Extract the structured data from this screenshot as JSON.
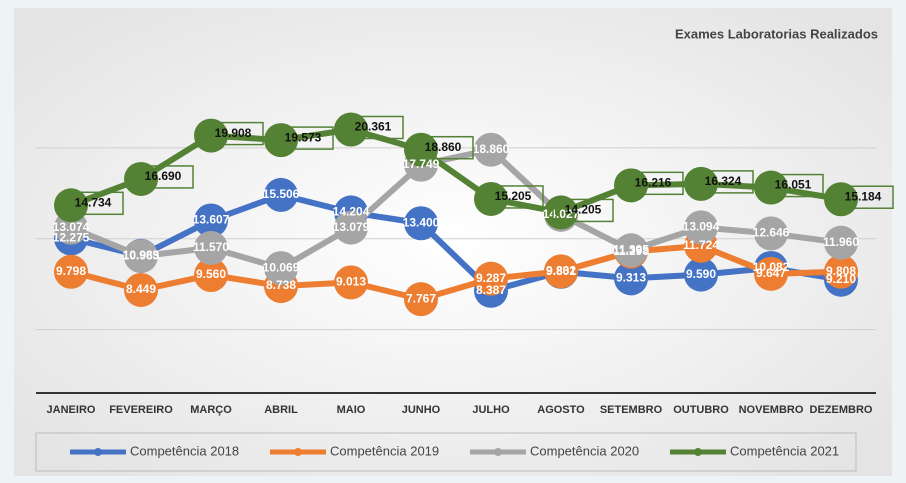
{
  "chart_data": {
    "type": "line",
    "title": "Exames Laboratorias Realizados",
    "categories": [
      "JANEIRO",
      "FEVEREIRO",
      "MARÇO",
      "ABRIL",
      "MAIO",
      "JUNHO",
      "JULHO",
      "AGOSTO",
      "SETEMBRO",
      "OUTUBRO",
      "NOVEMBRO",
      "DEZEMBRO"
    ],
    "series": [
      {
        "name": "Competência 2018",
        "color": "#4472c4",
        "values": [
          12.275,
          10.985,
          13.607,
          15.506,
          14.204,
          13.4,
          8.387,
          9.801,
          9.313,
          9.59,
          10.082,
          9.21
        ],
        "value_labels": [
          "12.275",
          "10.985",
          "13.607",
          "15.506",
          "14.204",
          "13.400",
          "8.387",
          "9.801",
          "9.313",
          "9.590",
          "10.082",
          "9.210"
        ]
      },
      {
        "name": "Competência 2019",
        "color": "#ed7d31",
        "values": [
          9.798,
          8.449,
          9.56,
          8.738,
          9.013,
          7.767,
          9.287,
          9.832,
          11.298,
          11.724,
          9.647,
          9.808
        ],
        "value_labels": [
          "9.798",
          "8.449",
          "9.560",
          "8.738",
          "9.013",
          "7.767",
          "9.287",
          "9.832",
          "11.298",
          "11.724",
          "9.647",
          "9.808"
        ]
      },
      {
        "name": "Competência 2020",
        "color": "#a5a5a5",
        "values": [
          13.074,
          10.963,
          11.57,
          10.069,
          13.079,
          17.749,
          18.86,
          14.027,
          11.395,
          13.094,
          12.646,
          11.96
        ],
        "value_labels": [
          "13.074",
          "10.963",
          "11.570",
          "10.069",
          "13.079",
          "17.749",
          "18.860",
          "14.027",
          "11.395",
          "13.094",
          "12.646",
          "11.960"
        ]
      },
      {
        "name": "Competência 2021",
        "color": "#548235",
        "values": [
          14.734,
          16.69,
          19.908,
          19.573,
          20.361,
          18.86,
          15.205,
          14.205,
          16.216,
          16.324,
          16.051,
          15.184
        ],
        "value_labels": [
          "14.734",
          "16.690",
          "19.908",
          "19.573",
          "20.361",
          "18.860",
          "15.205",
          "14.205",
          "16.216",
          "16.324",
          "16.051",
          "15.184"
        ]
      }
    ],
    "ylim": [
      0.8,
      25
    ],
    "yticks": [
      5.5,
      12.25,
      19
    ],
    "grid": true
  }
}
